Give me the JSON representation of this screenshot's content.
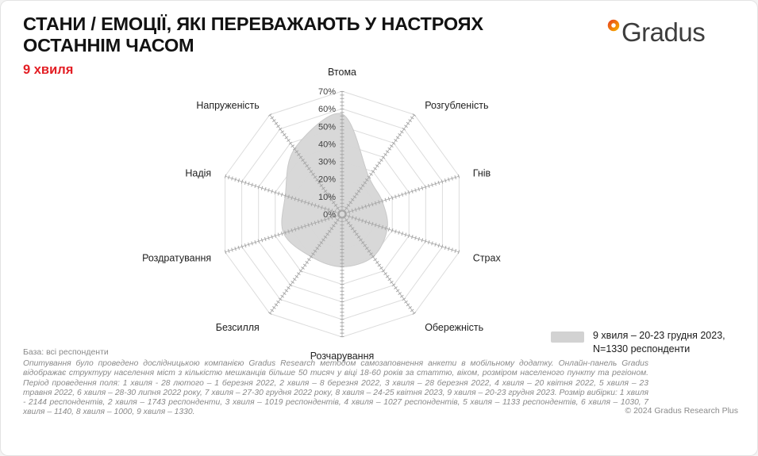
{
  "header": {
    "title_line1": "СТАНИ / ЕМОЦІЇ, ЯКІ ПЕРЕВАЖАЮТЬ У НАСТРОЯХ",
    "title_line2": "ОСТАННІМ ЧАСОМ",
    "subtitle": "9 хвиля",
    "subtitle_color": "#e31e24"
  },
  "logo": {
    "text": "Gradus"
  },
  "chart_data": {
    "type": "radar",
    "title": "Стани / емоції, які переважають у настроях останнім часом — 9 хвиля",
    "categories": [
      "Втома",
      "Розгубленість",
      "Гнів",
      "Страх",
      "Обережність",
      "Розчарування",
      "Безсилля",
      "Роздратування",
      "Надія",
      "Напруженість"
    ],
    "series": [
      {
        "name": "9 хвиля – 20-23 грудня 2023, N=1330 респонденти",
        "values": [
          57,
          26,
          24,
          27,
          30,
          30,
          30,
          35,
          34,
          46
        ]
      }
    ],
    "rmax": 70,
    "tick_step": 10,
    "tick_labels": [
      "0%",
      "10%",
      "20%",
      "30%",
      "40%",
      "50%",
      "60%",
      "70%"
    ],
    "grid": true,
    "grid_color": "#dcdcdc",
    "spoke_color": "#a6a6a6",
    "fill_color": "#d6d6d6",
    "legend_position": "right-bottom"
  },
  "legend": {
    "swatch_color": "#d2d2d2",
    "line1": "9 хвиля – 20-23 грудня 2023,",
    "line2": "N=1330 респонденти"
  },
  "footer": {
    "base": "База: всі респонденти",
    "methodology": "Опитування було проведено дослідницькою компанією Gradus Research методом самозаповнення анкети в мобільному додатку. Онлайн-панель Gradus відображає структуру населення міст з кількістю мешканців більше 50 тисяч у віці 18-60 років за статтю, віком, розміром населеного пункту та регіоном. Період проведення поля: 1 хвиля - 28 лютого – 1 березня 2022, 2 хвиля – 8 березня 2022, 3 хвиля – 28 березня 2022, 4 хвиля – 20 квітня 2022, 5 хвиля – 23 травня 2022, 6 хвиля – 28-30 липня 2022 року, 7 хвиля – 27-30 грудня 2022 року, 8 хвиля – 24-25 квітня 2023, 9 хвиля – 20-23 грудня 2023. Розмір вибірки: 1 хвиля - 2144 респондентів, 2 хвиля – 1743 респонденти, 3 хвиля – 1019 респондентів, 4 хвиля – 1027 респондентів, 5 хвиля – 1133 респондентів, 6 хвиля – 1030, 7 хвиля – 1140, 8 хвиля – 1000, 9 хвиля – 1330.",
    "copyright": "© 2024 Gradus Research Plus"
  }
}
